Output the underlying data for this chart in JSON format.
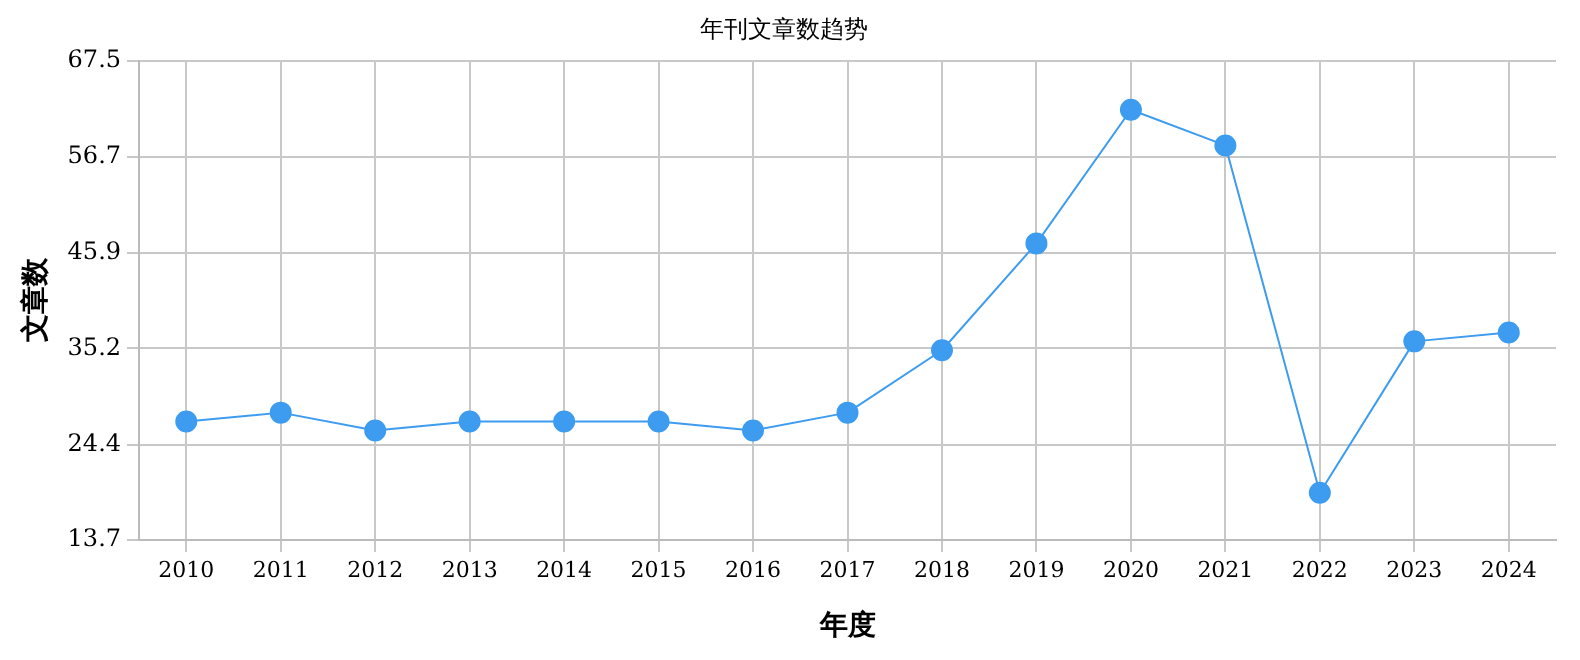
{
  "chart_data": {
    "type": "line",
    "title": "年刊文章数趋势",
    "xlabel": "年度",
    "ylabel": "文章数",
    "categories": [
      "2010",
      "2011",
      "2012",
      "2013",
      "2014",
      "2015",
      "2016",
      "2017",
      "2018",
      "2019",
      "2020",
      "2021",
      "2022",
      "2023",
      "2024"
    ],
    "series": [
      {
        "color": "#3d9cf0",
        "values": [
          27,
          28,
          26,
          27,
          27,
          27,
          26,
          28,
          35,
          47,
          62,
          58,
          19,
          36,
          37
        ]
      }
    ],
    "ylim": [
      13.7,
      67.5
    ],
    "yticks": [
      13.7,
      24.4,
      35.2,
      45.9,
      56.7,
      67.5
    ],
    "grid": true,
    "legend": false,
    "marker": "circle",
    "line_style": "solid"
  }
}
